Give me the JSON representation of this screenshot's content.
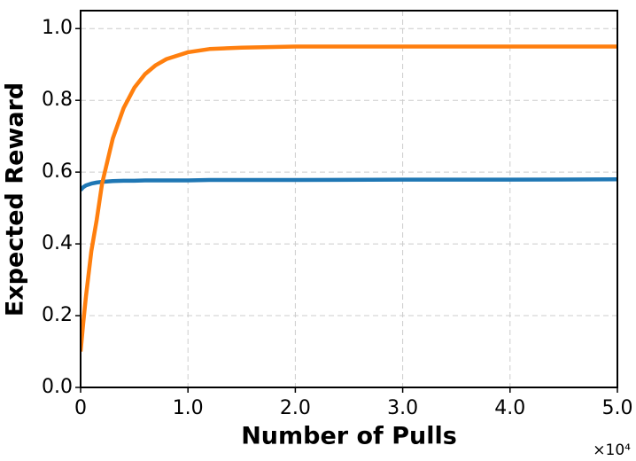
{
  "chart_data": {
    "type": "line",
    "xlabel": "Number of Pulls",
    "ylabel": "Expected Reward",
    "x_offset_text": "×10⁴",
    "x": [
      0,
      250,
      500,
      1000,
      1500,
      2000,
      3000,
      4000,
      5000,
      6000,
      7000,
      8000,
      10000,
      12000,
      15000,
      20000,
      30000,
      40000,
      50000
    ],
    "series": [
      {
        "color": "#1f77b4",
        "values": [
          0.55,
          0.558,
          0.563,
          0.568,
          0.571,
          0.573,
          0.575,
          0.576,
          0.576,
          0.577,
          0.577,
          0.577,
          0.577,
          0.578,
          0.578,
          0.578,
          0.579,
          0.579,
          0.58
        ]
      },
      {
        "color": "#ff7f0e",
        "values": [
          0.1,
          0.181,
          0.254,
          0.38,
          0.467,
          0.568,
          0.694,
          0.778,
          0.835,
          0.873,
          0.898,
          0.915,
          0.934,
          0.943,
          0.947,
          0.95,
          0.95,
          0.95,
          0.95
        ]
      }
    ],
    "xlim": [
      0,
      50000
    ],
    "xticks": [
      0,
      {
        "value": 10000,
        "label": "1.0"
      },
      {
        "value": 20000,
        "label": "2.0"
      },
      {
        "value": 30000,
        "label": "3.0"
      },
      {
        "value": 40000,
        "label": "4.0"
      },
      {
        "value": 50000,
        "label": "5.0"
      }
    ],
    "ylim": [
      0,
      1.05
    ],
    "yticks": [
      {
        "value": 0,
        "label": "0.0"
      },
      0.2,
      0.4,
      0.6,
      0.8,
      {
        "value": 1,
        "label": "1.0"
      }
    ],
    "grid": true
  }
}
